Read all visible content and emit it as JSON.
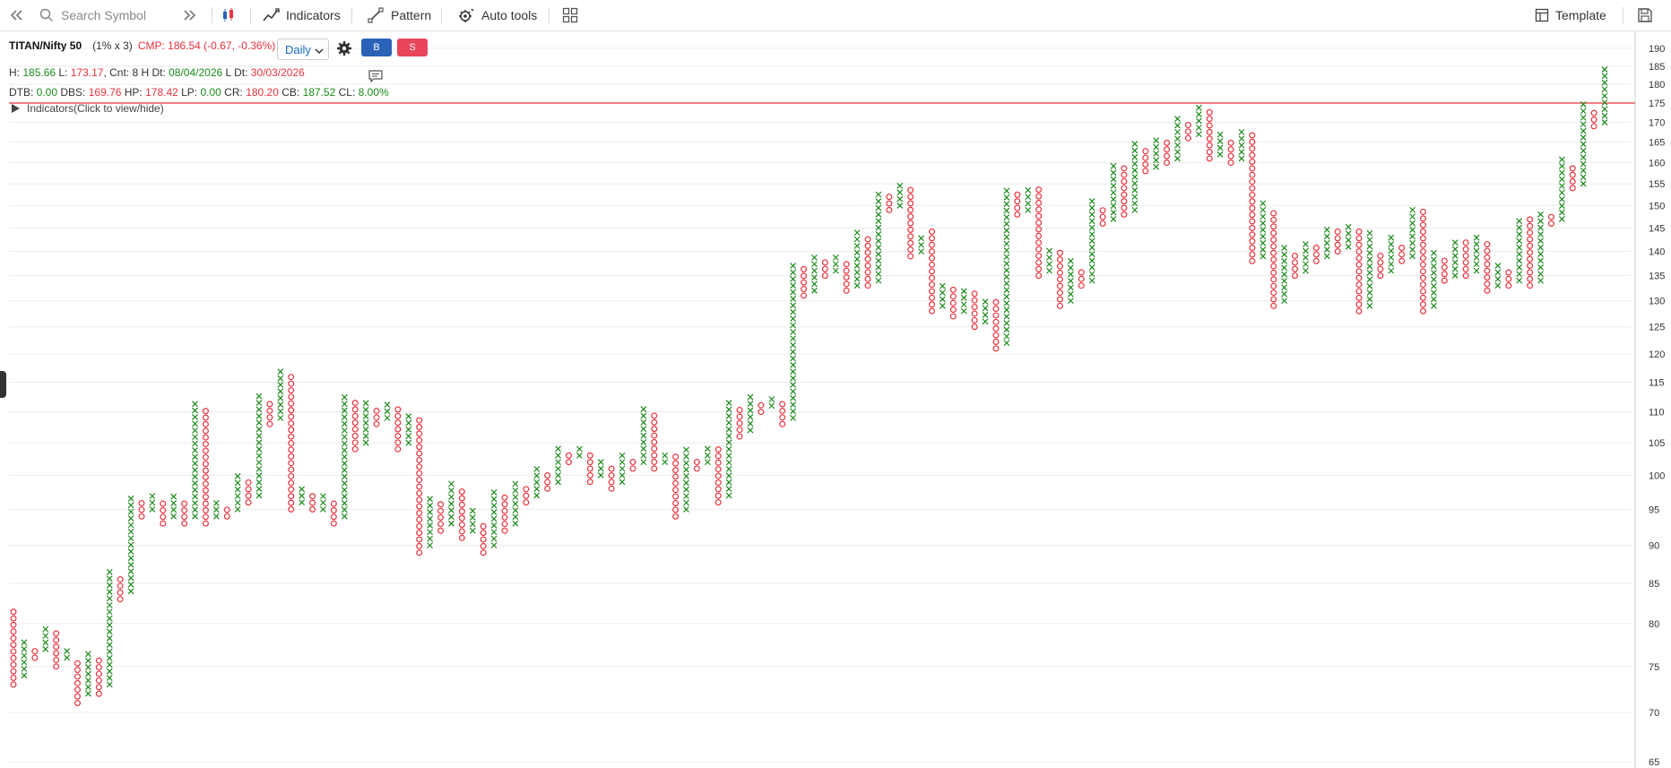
{
  "toolbar": {
    "search_placeholder": "Search Symbol",
    "indicators_label": "Indicators",
    "pattern_label": "Pattern",
    "autotools_label": "Auto tools",
    "template_label": "Template"
  },
  "header": {
    "symbol": "TITAN/Nifty 50",
    "box_setting": "(1% x 3)",
    "cmp": "CMP: 186.54 (-0.67, -0.36%)",
    "timeframe": "Daily",
    "buy_label": "B",
    "sell_label": "S"
  },
  "stats1": {
    "h_label": "H: ",
    "h_value": "185.66",
    "l_label": " L: ",
    "l_value": "173.17",
    "cnt_label": ", Cnt: 8 H Dt: ",
    "h_date": "08/04/2026",
    "ldt_label": " L Dt: ",
    "l_date": "30/03/2026"
  },
  "stats2": {
    "dtb_label": "DTB: ",
    "dtb": "0.00",
    "dbs_label": " DBS: ",
    "dbs": "169.76",
    "hp_label": " HP: ",
    "hp": "178.42",
    "lp_label": " LP: ",
    "lp": "0.00",
    "cr_label": " CR: ",
    "cr": "180.20",
    "cb_label": " CB: ",
    "cb": "187.52",
    "cl_label": " CL: ",
    "cl": "8.00%"
  },
  "indicators_toggle": "Indicators(Click to view/hide)",
  "colors": {
    "x": "#1a8a1a",
    "o": "#e8333f",
    "accent": "#1a6bc4",
    "buy": "#2a62b8",
    "sell": "#e8455a",
    "hline": "#e8333f"
  },
  "icons": [
    "chevrons-left-icon",
    "search-icon",
    "chevrons-right-icon",
    "candlestick-icon",
    "indicators-icon",
    "pattern-icon",
    "autotools-icon",
    "layout-icon",
    "template-icon",
    "save-icon",
    "settings-icon",
    "comment-icon"
  ],
  "chart_data": {
    "type": "point-and-figure",
    "y_axis": {
      "min": 65,
      "max": 190,
      "ticks": [
        65,
        70,
        75,
        80,
        85,
        90,
        95,
        100,
        105,
        110,
        115,
        120,
        125,
        130,
        135,
        140,
        145,
        150,
        155,
        160,
        165,
        170,
        175,
        180,
        185,
        190
      ]
    },
    "horizontal_line": 175,
    "grid": true,
    "columns": [
      {
        "t": "O",
        "hi": 82,
        "lo": 73
      },
      {
        "t": "X",
        "hi": 78,
        "lo": 74
      },
      {
        "t": "O",
        "hi": 77,
        "lo": 76
      },
      {
        "t": "X",
        "hi": 80,
        "lo": 77
      },
      {
        "t": "O",
        "hi": 79,
        "lo": 75
      },
      {
        "t": "X",
        "hi": 77,
        "lo": 76
      },
      {
        "t": "O",
        "hi": 76,
        "lo": 71
      },
      {
        "t": "X",
        "hi": 77,
        "lo": 72
      },
      {
        "t": "O",
        "hi": 76,
        "lo": 72
      },
      {
        "t": "X",
        "hi": 87,
        "lo": 73
      },
      {
        "t": "O",
        "hi": 86,
        "lo": 83
      },
      {
        "t": "X",
        "hi": 97,
        "lo": 84
      },
      {
        "t": "O",
        "hi": 96,
        "lo": 94
      },
      {
        "t": "X",
        "hi": 97,
        "lo": 95
      },
      {
        "t": "O",
        "hi": 96,
        "lo": 93
      },
      {
        "t": "X",
        "hi": 97,
        "lo": 94
      },
      {
        "t": "O",
        "hi": 96,
        "lo": 93
      },
      {
        "t": "X",
        "hi": 112,
        "lo": 94
      },
      {
        "t": "O",
        "hi": 111,
        "lo": 93
      },
      {
        "t": "X",
        "hi": 96,
        "lo": 94
      },
      {
        "t": "O",
        "hi": 95,
        "lo": 94
      },
      {
        "t": "X",
        "hi": 100,
        "lo": 95
      },
      {
        "t": "O",
        "hi": 99,
        "lo": 96
      },
      {
        "t": "X",
        "hi": 113,
        "lo": 97
      },
      {
        "t": "O",
        "hi": 112,
        "lo": 108
      },
      {
        "t": "X",
        "hi": 117,
        "lo": 109
      },
      {
        "t": "O",
        "hi": 116,
        "lo": 95
      },
      {
        "t": "X",
        "hi": 98,
        "lo": 96
      },
      {
        "t": "O",
        "hi": 97,
        "lo": 95
      },
      {
        "t": "X",
        "hi": 97,
        "lo": 95
      },
      {
        "t": "O",
        "hi": 96,
        "lo": 93
      },
      {
        "t": "X",
        "hi": 113,
        "lo": 94
      },
      {
        "t": "O",
        "hi": 112,
        "lo": 104
      },
      {
        "t": "X",
        "hi": 112,
        "lo": 105
      },
      {
        "t": "O",
        "hi": 111,
        "lo": 108
      },
      {
        "t": "X",
        "hi": 112,
        "lo": 109
      },
      {
        "t": "O",
        "hi": 111,
        "lo": 104
      },
      {
        "t": "X",
        "hi": 110,
        "lo": 105
      },
      {
        "t": "O",
        "hi": 109,
        "lo": 89
      },
      {
        "t": "X",
        "hi": 97,
        "lo": 90
      },
      {
        "t": "O",
        "hi": 96,
        "lo": 92
      },
      {
        "t": "X",
        "hi": 99,
        "lo": 93
      },
      {
        "t": "O",
        "hi": 98,
        "lo": 91
      },
      {
        "t": "X",
        "hi": 95,
        "lo": 92
      },
      {
        "t": "O",
        "hi": 93,
        "lo": 89
      },
      {
        "t": "X",
        "hi": 98,
        "lo": 90
      },
      {
        "t": "O",
        "hi": 97,
        "lo": 92
      },
      {
        "t": "X",
        "hi": 99,
        "lo": 93
      },
      {
        "t": "O",
        "hi": 98,
        "lo": 96
      },
      {
        "t": "X",
        "hi": 101,
        "lo": 97
      },
      {
        "t": "O",
        "hi": 100,
        "lo": 98
      },
      {
        "t": "X",
        "hi": 105,
        "lo": 99
      },
      {
        "t": "O",
        "hi": 104,
        "lo": 102
      },
      {
        "t": "X",
        "hi": 105,
        "lo": 103
      },
      {
        "t": "O",
        "hi": 104,
        "lo": 99
      },
      {
        "t": "X",
        "hi": 102,
        "lo": 100
      },
      {
        "t": "O",
        "hi": 101,
        "lo": 98
      },
      {
        "t": "X",
        "hi": 104,
        "lo": 99
      },
      {
        "t": "O",
        "hi": 103,
        "lo": 101
      },
      {
        "t": "X",
        "hi": 111,
        "lo": 102
      },
      {
        "t": "O",
        "hi": 110,
        "lo": 101
      },
      {
        "t": "X",
        "hi": 104,
        "lo": 102
      },
      {
        "t": "O",
        "hi": 103,
        "lo": 94
      },
      {
        "t": "X",
        "hi": 104,
        "lo": 95
      },
      {
        "t": "O",
        "hi": 103,
        "lo": 101
      },
      {
        "t": "X",
        "hi": 105,
        "lo": 102
      },
      {
        "t": "O",
        "hi": 104,
        "lo": 96
      },
      {
        "t": "X",
        "hi": 112,
        "lo": 97
      },
      {
        "t": "O",
        "hi": 111,
        "lo": 106
      },
      {
        "t": "X",
        "hi": 113,
        "lo": 107
      },
      {
        "t": "O",
        "hi": 112,
        "lo": 110
      },
      {
        "t": "X",
        "hi": 113,
        "lo": 111
      },
      {
        "t": "O",
        "hi": 112,
        "lo": 108
      },
      {
        "t": "X",
        "hi": 138,
        "lo": 109
      },
      {
        "t": "O",
        "hi": 137,
        "lo": 131
      },
      {
        "t": "X",
        "hi": 139,
        "lo": 132
      },
      {
        "t": "O",
        "hi": 138,
        "lo": 135
      },
      {
        "t": "X",
        "hi": 139,
        "lo": 136
      },
      {
        "t": "O",
        "hi": 138,
        "lo": 132
      },
      {
        "t": "X",
        "hi": 145,
        "lo": 133
      },
      {
        "t": "O",
        "hi": 144,
        "lo": 133
      },
      {
        "t": "X",
        "hi": 154,
        "lo": 134
      },
      {
        "t": "O",
        "hi": 153,
        "lo": 149
      },
      {
        "t": "X",
        "hi": 155,
        "lo": 150
      },
      {
        "t": "O",
        "hi": 154,
        "lo": 139
      },
      {
        "t": "X",
        "hi": 143,
        "lo": 140
      },
      {
        "t": "O",
        "hi": 145,
        "lo": 128
      },
      {
        "t": "X",
        "hi": 134,
        "lo": 129
      },
      {
        "t": "O",
        "hi": 133,
        "lo": 127
      },
      {
        "t": "X",
        "hi": 133,
        "lo": 128
      },
      {
        "t": "O",
        "hi": 132,
        "lo": 125
      },
      {
        "t": "X",
        "hi": 130,
        "lo": 126
      },
      {
        "t": "O",
        "hi": 130,
        "lo": 121
      },
      {
        "t": "X",
        "hi": 154,
        "lo": 122
      },
      {
        "t": "O",
        "hi": 153,
        "lo": 148
      },
      {
        "t": "X",
        "hi": 155,
        "lo": 149
      },
      {
        "t": "O",
        "hi": 154,
        "lo": 135
      },
      {
        "t": "X",
        "hi": 141,
        "lo": 136
      },
      {
        "t": "O",
        "hi": 140,
        "lo": 129
      },
      {
        "t": "X",
        "hi": 138,
        "lo": 130
      },
      {
        "t": "O",
        "hi": 137,
        "lo": 133
      },
      {
        "t": "X",
        "hi": 151,
        "lo": 134
      },
      {
        "t": "O",
        "hi": 150,
        "lo": 146
      },
      {
        "t": "X",
        "hi": 160,
        "lo": 147
      },
      {
        "t": "O",
        "hi": 159,
        "lo": 148
      },
      {
        "t": "X",
        "hi": 165,
        "lo": 149
      },
      {
        "t": "O",
        "hi": 164,
        "lo": 158
      },
      {
        "t": "X",
        "hi": 166,
        "lo": 159
      },
      {
        "t": "O",
        "hi": 165,
        "lo": 160
      },
      {
        "t": "X",
        "hi": 171,
        "lo": 161
      },
      {
        "t": "O",
        "hi": 170,
        "lo": 166
      },
      {
        "t": "X",
        "hi": 175,
        "lo": 167
      },
      {
        "t": "O",
        "hi": 174,
        "lo": 161
      },
      {
        "t": "X",
        "hi": 167,
        "lo": 162
      },
      {
        "t": "O",
        "hi": 166,
        "lo": 160
      },
      {
        "t": "X",
        "hi": 168,
        "lo": 161
      },
      {
        "t": "O",
        "hi": 167,
        "lo": 138
      },
      {
        "t": "X",
        "hi": 151,
        "lo": 139
      },
      {
        "t": "O",
        "hi": 149,
        "lo": 129
      },
      {
        "t": "X",
        "hi": 141,
        "lo": 130
      },
      {
        "t": "O",
        "hi": 140,
        "lo": 135
      },
      {
        "t": "X",
        "hi": 142,
        "lo": 136
      },
      {
        "t": "O",
        "hi": 141,
        "lo": 138
      },
      {
        "t": "X",
        "hi": 146,
        "lo": 139
      },
      {
        "t": "O",
        "hi": 145,
        "lo": 140
      },
      {
        "t": "X",
        "hi": 146,
        "lo": 141
      },
      {
        "t": "O",
        "hi": 145,
        "lo": 128
      },
      {
        "t": "X",
        "hi": 144,
        "lo": 129
      },
      {
        "t": "O",
        "hi": 140,
        "lo": 135
      },
      {
        "t": "X",
        "hi": 143,
        "lo": 136
      },
      {
        "t": "O",
        "hi": 142,
        "lo": 138
      },
      {
        "t": "X",
        "hi": 150,
        "lo": 139
      },
      {
        "t": "O",
        "hi": 149,
        "lo": 128
      },
      {
        "t": "X",
        "hi": 140,
        "lo": 129
      },
      {
        "t": "O",
        "hi": 139,
        "lo": 134
      },
      {
        "t": "X",
        "hi": 143,
        "lo": 135
      },
      {
        "t": "O",
        "hi": 142,
        "lo": 135
      },
      {
        "t": "X",
        "hi": 143,
        "lo": 136
      },
      {
        "t": "O",
        "hi": 142,
        "lo": 132
      },
      {
        "t": "X",
        "hi": 138,
        "lo": 133
      },
      {
        "t": "O",
        "hi": 137,
        "lo": 133
      },
      {
        "t": "X",
        "hi": 148,
        "lo": 134
      },
      {
        "t": "O",
        "hi": 147,
        "lo": 133
      },
      {
        "t": "X",
        "hi": 149,
        "lo": 134
      },
      {
        "t": "O",
        "hi": 148,
        "lo": 146
      },
      {
        "t": "X",
        "hi": 161,
        "lo": 147
      },
      {
        "t": "O",
        "hi": 160,
        "lo": 154
      },
      {
        "t": "X",
        "hi": 175,
        "lo": 155
      },
      {
        "t": "O",
        "hi": 174,
        "lo": 169
      },
      {
        "t": "X",
        "hi": 185,
        "lo": 170
      }
    ]
  }
}
